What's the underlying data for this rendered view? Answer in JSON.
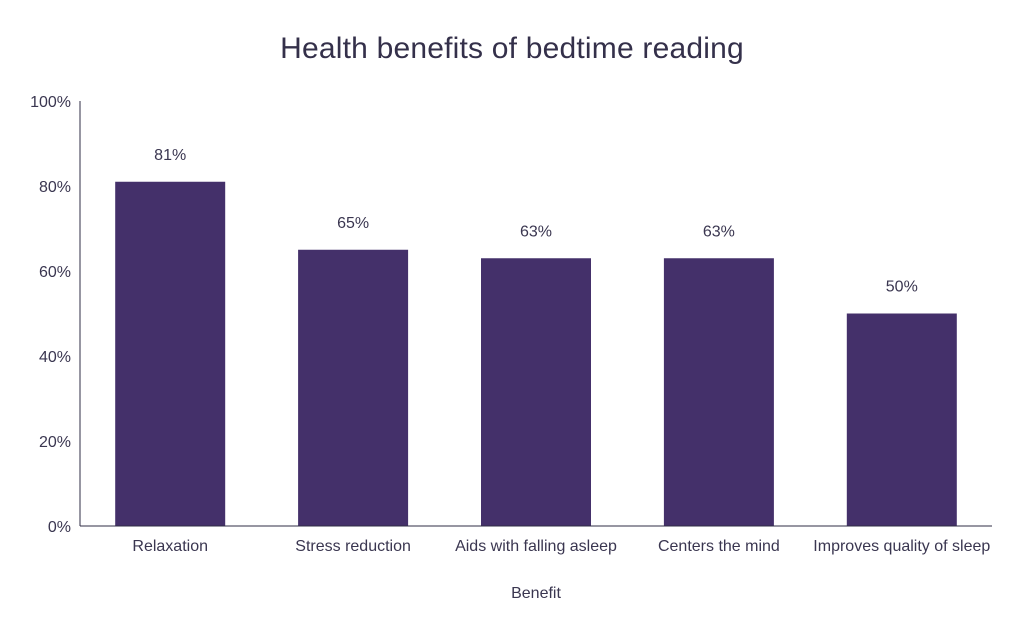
{
  "chart_data": {
    "type": "bar",
    "title": "Health benefits of bedtime reading",
    "xlabel": "Benefit",
    "ylabel": "",
    "categories": [
      "Relaxation",
      "Stress reduction",
      "Aids with falling asleep",
      "Centers the mind",
      "Improves quality of sleep"
    ],
    "values": [
      81,
      65,
      63,
      63,
      50
    ],
    "value_labels": [
      "81%",
      "65%",
      "63%",
      "63%",
      "50%"
    ],
    "ylim": [
      0,
      100
    ],
    "yticks": [
      0,
      20,
      40,
      60,
      80,
      100
    ],
    "ytick_labels": [
      "0%",
      "20%",
      "40%",
      "60%",
      "80%",
      "100%"
    ],
    "grid": false,
    "legend": "none",
    "bar_color": "#44306a",
    "axis_color": "#2f2c44"
  }
}
